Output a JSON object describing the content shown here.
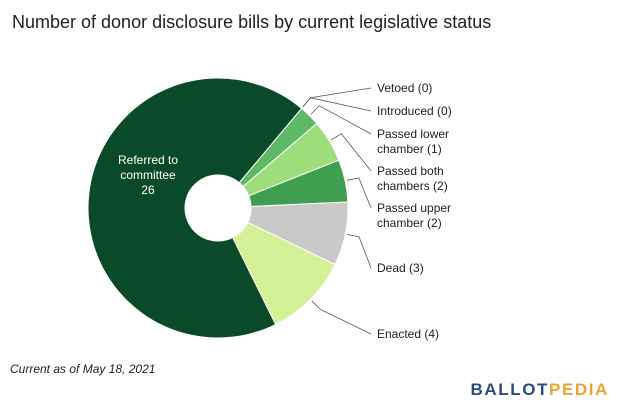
{
  "chart_data": {
    "type": "pie",
    "title": "Number of donor disclosure bills by current legislative status",
    "slices": [
      {
        "label_lines": [
          "Vetoed (0)"
        ],
        "value": 0,
        "color": "#a8d98a"
      },
      {
        "label_lines": [
          "Introduced (0)"
        ],
        "value": 0,
        "color": "#7cc26a"
      },
      {
        "label_lines": [
          "Passed lower",
          "chamber (1)"
        ],
        "value": 1,
        "color": "#5fb866"
      },
      {
        "label_lines": [
          "Passed both",
          "chambers (2)"
        ],
        "value": 2,
        "color": "#9edc7c"
      },
      {
        "label_lines": [
          "Passed upper",
          "chamber (2)"
        ],
        "value": 2,
        "color": "#3f9e4f"
      },
      {
        "label_lines": [
          "Dead (3)"
        ],
        "value": 3,
        "color": "#c9c9c9"
      },
      {
        "label_lines": [
          "Enacted (4)"
        ],
        "value": 4,
        "color": "#d4f197"
      },
      {
        "label_lines": [
          "Referred to",
          "committee",
          "26"
        ],
        "value": 26,
        "color": "#0b4a28",
        "inside": true
      }
    ]
  },
  "footnote": "Current as of May 18, 2021",
  "logo": {
    "part1": "BALLOT",
    "part2": "PEDIA"
  }
}
